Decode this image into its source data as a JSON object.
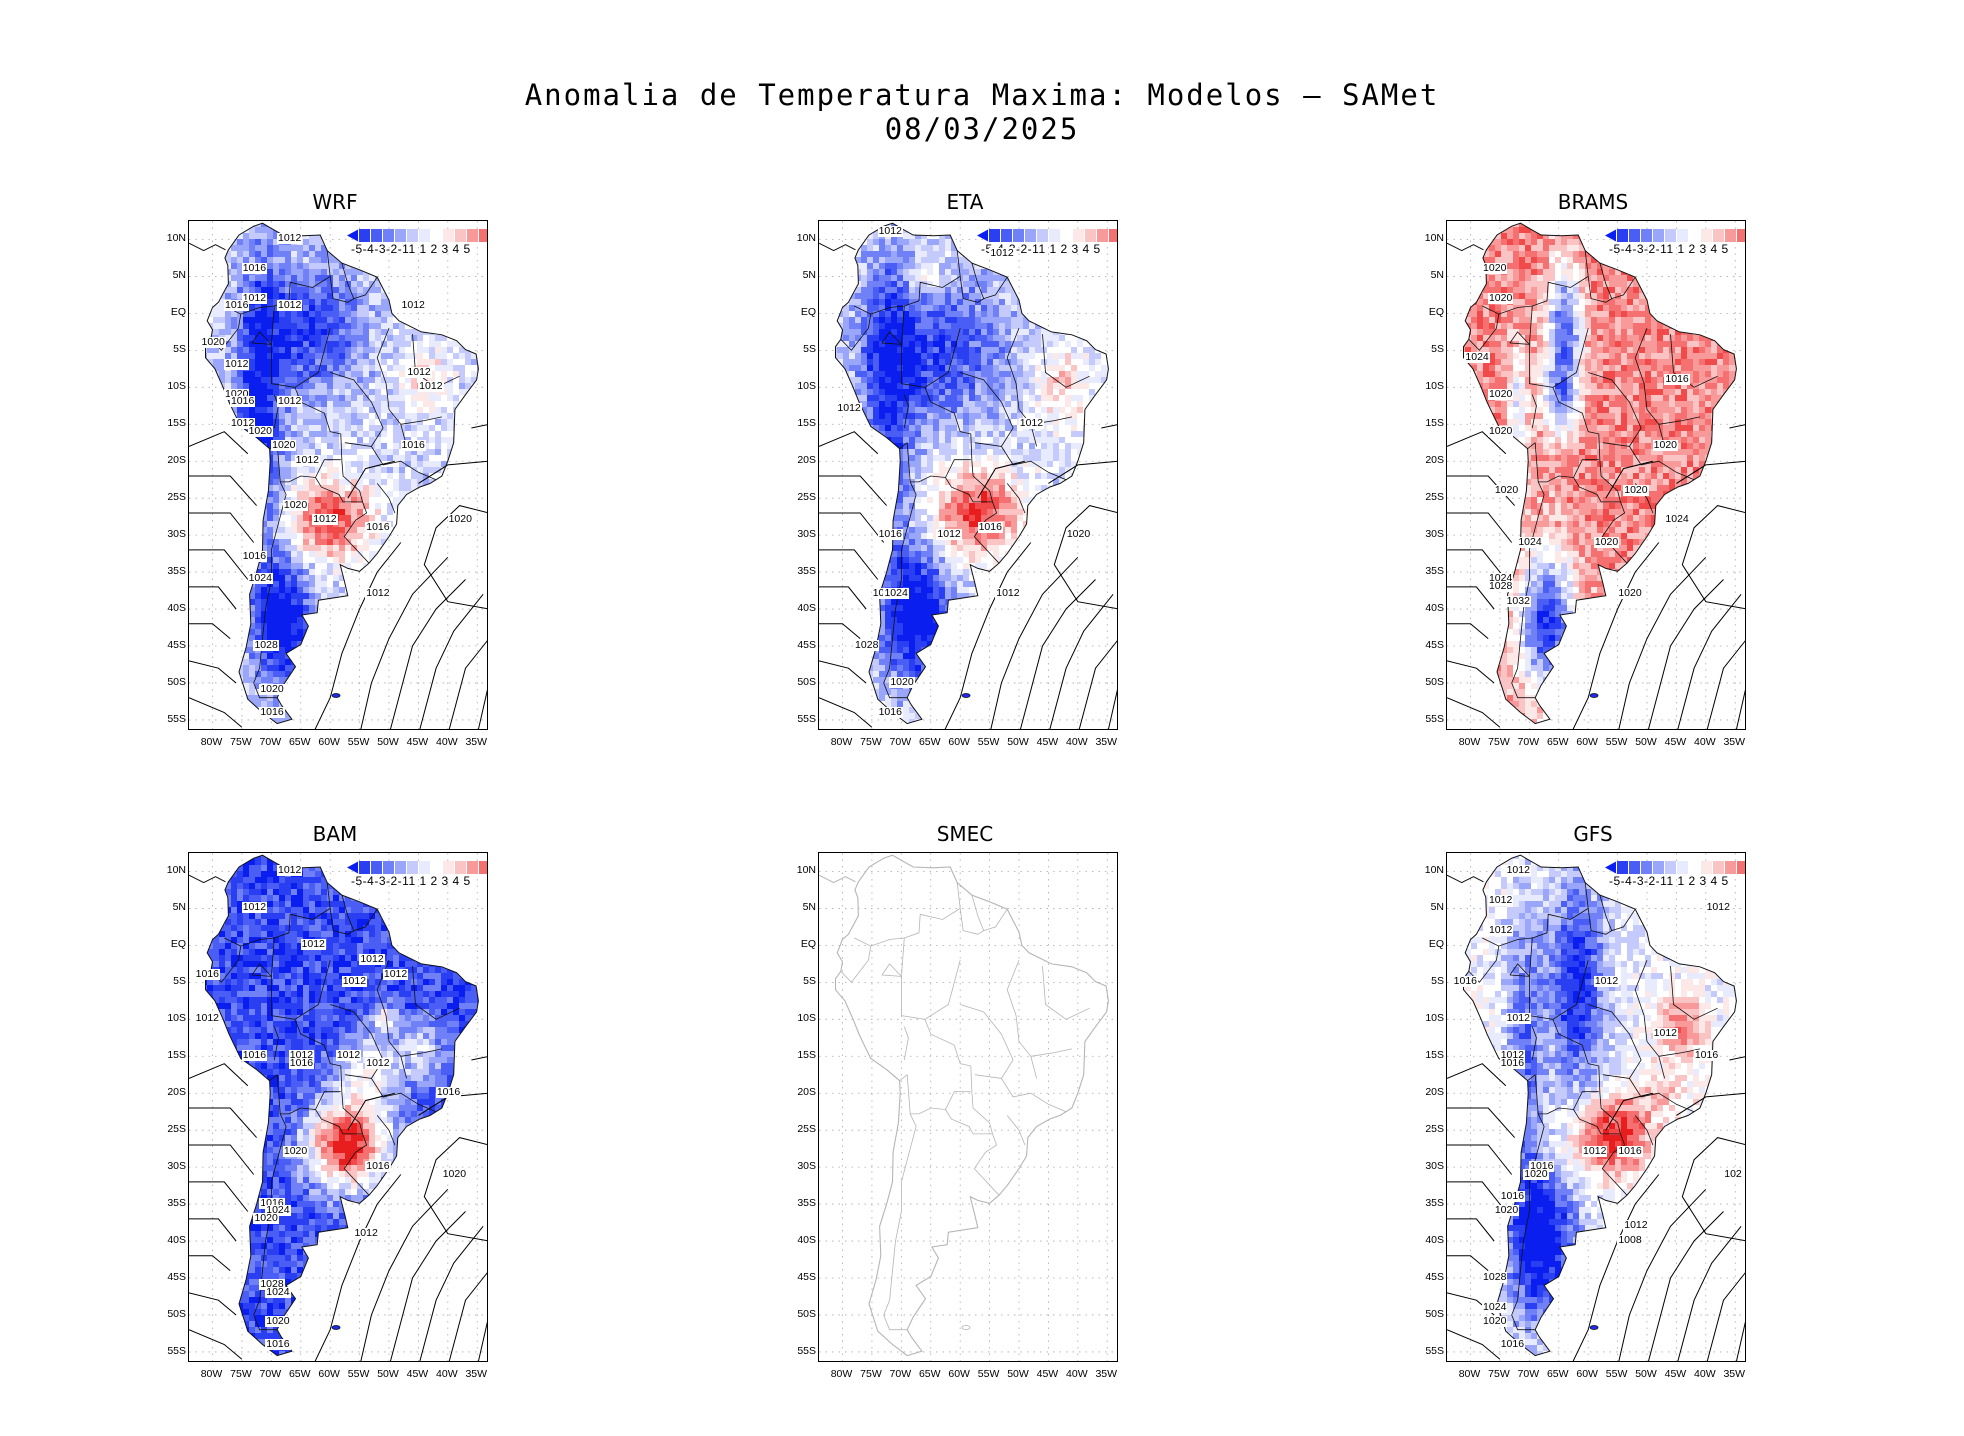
{
  "figure": {
    "title": "Anomalia de Temperatura Maxima: Modelos — SAMet",
    "date": "08/03/2025"
  },
  "axes": {
    "lat_labels": [
      "10N",
      "5N",
      "EQ",
      "5S",
      "10S",
      "15S",
      "20S",
      "25S",
      "30S",
      "35S",
      "40S",
      "45S",
      "50S",
      "55S"
    ],
    "lat_values": [
      10,
      5,
      0,
      -5,
      -10,
      -15,
      -20,
      -25,
      -30,
      -35,
      -40,
      -45,
      -50,
      -55
    ],
    "lon_labels": [
      "80W",
      "75W",
      "70W",
      "65W",
      "60W",
      "55W",
      "50W",
      "45W",
      "40W",
      "35W"
    ],
    "lon_values": [
      -80,
      -75,
      -70,
      -65,
      -60,
      -55,
      -50,
      -45,
      -40,
      -35
    ],
    "lat_range": [
      -56.5,
      12.5
    ],
    "lon_range": [
      -84,
      -33
    ]
  },
  "colorbar": {
    "labels_text": "-5-4-3-2-11 1 2 3 4 5",
    "colors": [
      "#0a1ef0",
      "#2a3ef2",
      "#4a5ef5",
      "#7080f7",
      "#9aa6fa",
      "#c4cbfc",
      "#e8ebfe",
      "#ffffff",
      "#fde8e8",
      "#fbc4c4",
      "#f89a9a",
      "#f57070",
      "#f04a4a",
      "#e81e1e"
    ]
  },
  "panels": [
    {
      "id": "wrf",
      "name": "WRF",
      "has_data": true,
      "pattern": "wrf",
      "isobar_labels": [
        {
          "text": "1012",
          "lon": -67,
          "lat": 10
        },
        {
          "text": "1016",
          "lon": -73,
          "lat": 6
        },
        {
          "text": "1012",
          "lon": -73,
          "lat": 2
        },
        {
          "text": "1016",
          "lon": -76,
          "lat": 1
        },
        {
          "text": "1012",
          "lon": -67,
          "lat": 1
        },
        {
          "text": "1012",
          "lon": -46,
          "lat": 1
        },
        {
          "text": "1020",
          "lon": -80,
          "lat": -4
        },
        {
          "text": "1012",
          "lon": -76,
          "lat": -7
        },
        {
          "text": "1012",
          "lon": -45,
          "lat": -8
        },
        {
          "text": "1012",
          "lon": -43,
          "lat": -10
        },
        {
          "text": "1020",
          "lon": -76,
          "lat": -11
        },
        {
          "text": "1016",
          "lon": -75,
          "lat": -12
        },
        {
          "text": "1012",
          "lon": -67,
          "lat": -12
        },
        {
          "text": "1012",
          "lon": -75,
          "lat": -15
        },
        {
          "text": "1020",
          "lon": -72,
          "lat": -16
        },
        {
          "text": "1020",
          "lon": -68,
          "lat": -18
        },
        {
          "text": "1016",
          "lon": -46,
          "lat": -18
        },
        {
          "text": "1012",
          "lon": -64,
          "lat": -20
        },
        {
          "text": "1020",
          "lon": -66,
          "lat": -26
        },
        {
          "text": "1012",
          "lon": -61,
          "lat": -28
        },
        {
          "text": "1016",
          "lon": -52,
          "lat": -29
        },
        {
          "text": "1020",
          "lon": -38,
          "lat": -28
        },
        {
          "text": "1016",
          "lon": -73,
          "lat": -33
        },
        {
          "text": "1024",
          "lon": -72,
          "lat": -36
        },
        {
          "text": "1012",
          "lon": -52,
          "lat": -38
        },
        {
          "text": "1028",
          "lon": -71,
          "lat": -45
        },
        {
          "text": "1020",
          "lon": -70,
          "lat": -51
        },
        {
          "text": "1016",
          "lon": -70,
          "lat": -54
        }
      ]
    },
    {
      "id": "eta",
      "name": "ETA",
      "has_data": true,
      "pattern": "eta",
      "isobar_labels": [
        {
          "text": "1012",
          "lon": -72,
          "lat": 11
        },
        {
          "text": "1012",
          "lon": -53,
          "lat": 8
        },
        {
          "text": "1012",
          "lon": -79,
          "lat": -13
        },
        {
          "text": "1012",
          "lon": -48,
          "lat": -15
        },
        {
          "text": "1012",
          "lon": -62,
          "lat": -30
        },
        {
          "text": "1016",
          "lon": -55,
          "lat": -29
        },
        {
          "text": "1016",
          "lon": -72,
          "lat": -30
        },
        {
          "text": "1020",
          "lon": -40,
          "lat": -30
        },
        {
          "text": "1020",
          "lon": -73,
          "lat": -38
        },
        {
          "text": "1024",
          "lon": -71,
          "lat": -38
        },
        {
          "text": "1012",
          "lon": -52,
          "lat": -38
        },
        {
          "text": "1028",
          "lon": -76,
          "lat": -45
        },
        {
          "text": "1020",
          "lon": -70,
          "lat": -50
        },
        {
          "text": "1016",
          "lon": -72,
          "lat": -54
        }
      ]
    },
    {
      "id": "brams",
      "name": "BRAMS",
      "has_data": true,
      "pattern": "brams",
      "isobar_labels": [
        {
          "text": "1020",
          "lon": -76,
          "lat": 6
        },
        {
          "text": "1020",
          "lon": -75,
          "lat": 2
        },
        {
          "text": "1024",
          "lon": -79,
          "lat": -6
        },
        {
          "text": "1016",
          "lon": -45,
          "lat": -9
        },
        {
          "text": "1020",
          "lon": -75,
          "lat": -11
        },
        {
          "text": "1020",
          "lon": -75,
          "lat": -16
        },
        {
          "text": "1020",
          "lon": -47,
          "lat": -18
        },
        {
          "text": "1020",
          "lon": -74,
          "lat": -24
        },
        {
          "text": "1020",
          "lon": -52,
          "lat": -24
        },
        {
          "text": "1024",
          "lon": -45,
          "lat": -28
        },
        {
          "text": "1024",
          "lon": -70,
          "lat": -31
        },
        {
          "text": "1020",
          "lon": -57,
          "lat": -31
        },
        {
          "text": "1024",
          "lon": -75,
          "lat": -36
        },
        {
          "text": "1028",
          "lon": -75,
          "lat": -37
        },
        {
          "text": "1032",
          "lon": -72,
          "lat": -39
        },
        {
          "text": "1020",
          "lon": -53,
          "lat": -38
        }
      ]
    },
    {
      "id": "bam",
      "name": "BAM",
      "has_data": true,
      "pattern": "bam",
      "isobar_labels": [
        {
          "text": "1012",
          "lon": -67,
          "lat": 10
        },
        {
          "text": "1012",
          "lon": -73,
          "lat": 5
        },
        {
          "text": "1012",
          "lon": -63,
          "lat": 0
        },
        {
          "text": "1012",
          "lon": -53,
          "lat": -2
        },
        {
          "text": "1016",
          "lon": -81,
          "lat": -4
        },
        {
          "text": "1012",
          "lon": -49,
          "lat": -4
        },
        {
          "text": "1012",
          "lon": -56,
          "lat": -5
        },
        {
          "text": "1012",
          "lon": -81,
          "lat": -10
        },
        {
          "text": "1016",
          "lon": -73,
          "lat": -15
        },
        {
          "text": "1012",
          "lon": -65,
          "lat": -15
        },
        {
          "text": "1016",
          "lon": -65,
          "lat": -16
        },
        {
          "text": "1012",
          "lon": -57,
          "lat": -15
        },
        {
          "text": "1012",
          "lon": -52,
          "lat": -16
        },
        {
          "text": "1016",
          "lon": -40,
          "lat": -20
        },
        {
          "text": "1020",
          "lon": -66,
          "lat": -28
        },
        {
          "text": "1016",
          "lon": -52,
          "lat": -30
        },
        {
          "text": "1020",
          "lon": -39,
          "lat": -31
        },
        {
          "text": "1016",
          "lon": -70,
          "lat": -35
        },
        {
          "text": "1024",
          "lon": -69,
          "lat": -36
        },
        {
          "text": "1020",
          "lon": -71,
          "lat": -37
        },
        {
          "text": "1012",
          "lon": -54,
          "lat": -39
        },
        {
          "text": "1028",
          "lon": -70,
          "lat": -46
        },
        {
          "text": "1024",
          "lon": -69,
          "lat": -47
        },
        {
          "text": "1020",
          "lon": -69,
          "lat": -51
        },
        {
          "text": "1016",
          "lon": -69,
          "lat": -54
        }
      ]
    },
    {
      "id": "smec",
      "name": "SMEC",
      "has_data": false,
      "pattern": "none",
      "isobar_labels": []
    },
    {
      "id": "gfs",
      "name": "GFS",
      "has_data": true,
      "pattern": "gfs",
      "isobar_labels": [
        {
          "text": "1012",
          "lon": -72,
          "lat": 10
        },
        {
          "text": "1012",
          "lon": -75,
          "lat": 6
        },
        {
          "text": "1012",
          "lon": -75,
          "lat": 2
        },
        {
          "text": "1012",
          "lon": -38,
          "lat": 5
        },
        {
          "text": "1016",
          "lon": -81,
          "lat": -5
        },
        {
          "text": "1012",
          "lon": -57,
          "lat": -5
        },
        {
          "text": "1012",
          "lon": -72,
          "lat": -10
        },
        {
          "text": "1012",
          "lon": -47,
          "lat": -12
        },
        {
          "text": "1012",
          "lon": -73,
          "lat": -15
        },
        {
          "text": "1016",
          "lon": -73,
          "lat": -16
        },
        {
          "text": "1016",
          "lon": -40,
          "lat": -15
        },
        {
          "text": "1012",
          "lon": -59,
          "lat": -28
        },
        {
          "text": "1016",
          "lon": -53,
          "lat": -28
        },
        {
          "text": "1016",
          "lon": -68,
          "lat": -30
        },
        {
          "text": "1020",
          "lon": -69,
          "lat": -31
        },
        {
          "text": "102",
          "lon": -35,
          "lat": -31
        },
        {
          "text": "1016",
          "lon": -73,
          "lat": -34
        },
        {
          "text": "1020",
          "lon": -74,
          "lat": -36
        },
        {
          "text": "1012",
          "lon": -52,
          "lat": -38
        },
        {
          "text": "1008",
          "lon": -53,
          "lat": -40
        },
        {
          "text": "1028",
          "lon": -76,
          "lat": -45
        },
        {
          "text": "1024",
          "lon": -76,
          "lat": -49
        },
        {
          "text": "1020",
          "lon": -76,
          "lat": -51
        },
        {
          "text": "1016",
          "lon": -73,
          "lat": -54
        }
      ]
    }
  ]
}
